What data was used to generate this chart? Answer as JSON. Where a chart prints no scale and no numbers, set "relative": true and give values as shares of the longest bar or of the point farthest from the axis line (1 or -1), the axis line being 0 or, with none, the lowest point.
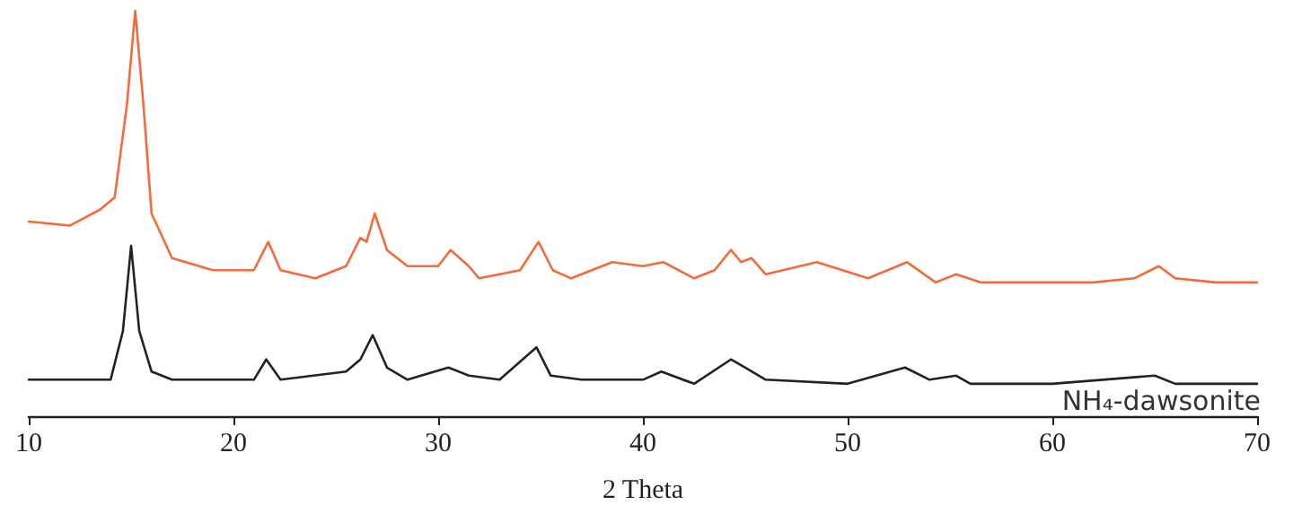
{
  "chart_data": {
    "type": "line",
    "relative": true,
    "xlabel": "2 Theta",
    "xlim": [
      10,
      70
    ],
    "xticks": [
      10,
      20,
      30,
      40,
      50,
      60,
      70
    ],
    "grid": false,
    "legend": false,
    "marker": "none",
    "line_style": "solid",
    "series": [
      {
        "color": "#f26b3a",
        "x": [
          10,
          12,
          13.5,
          14.2,
          14.8,
          15.2,
          15.6,
          16,
          17,
          19,
          21,
          21.7,
          22.3,
          24,
          25.5,
          26.2,
          26.5,
          26.9,
          27.5,
          28.5,
          30,
          30.6,
          31.5,
          32,
          34,
          34.9,
          35.6,
          36.5,
          38.5,
          40,
          41,
          42.5,
          43.5,
          44.3,
          44.8,
          45.3,
          46,
          48.5,
          51,
          52.9,
          54.3,
          55.3,
          56.5,
          60,
          62,
          64,
          65.2,
          66,
          68,
          70
        ],
        "values": [
          0.48,
          0.47,
          0.51,
          0.54,
          0.77,
          1,
          0.77,
          0.5,
          0.39,
          0.36,
          0.36,
          0.43,
          0.36,
          0.34,
          0.37,
          0.44,
          0.43,
          0.5,
          0.41,
          0.37,
          0.37,
          0.41,
          0.37,
          0.34,
          0.36,
          0.43,
          0.36,
          0.34,
          0.38,
          0.37,
          0.38,
          0.34,
          0.36,
          0.41,
          0.38,
          0.39,
          0.35,
          0.38,
          0.34,
          0.38,
          0.33,
          0.35,
          0.33,
          0.33,
          0.33,
          0.34,
          0.37,
          0.34,
          0.33,
          0.33
        ]
      },
      {
        "name": "NH₄-dawsonite",
        "color": "#222222",
        "x": [
          10,
          14,
          14.6,
          15,
          15.4,
          16,
          17,
          21,
          21.6,
          22.3,
          25.5,
          26.2,
          26.8,
          27.5,
          28.5,
          30.5,
          31.5,
          33,
          34.8,
          35.5,
          37,
          40,
          40.9,
          42.5,
          44.3,
          45,
          46,
          50,
          52.8,
          54,
          55.3,
          56,
          60,
          65,
          66,
          70
        ],
        "values": [
          0.09,
          0.09,
          0.21,
          0.42,
          0.21,
          0.11,
          0.09,
          0.09,
          0.14,
          0.09,
          0.11,
          0.14,
          0.2,
          0.12,
          0.09,
          0.12,
          0.1,
          0.09,
          0.17,
          0.1,
          0.09,
          0.09,
          0.11,
          0.08,
          0.14,
          0.12,
          0.09,
          0.08,
          0.12,
          0.09,
          0.1,
          0.08,
          0.08,
          0.1,
          0.08,
          0.08
        ]
      }
    ]
  }
}
